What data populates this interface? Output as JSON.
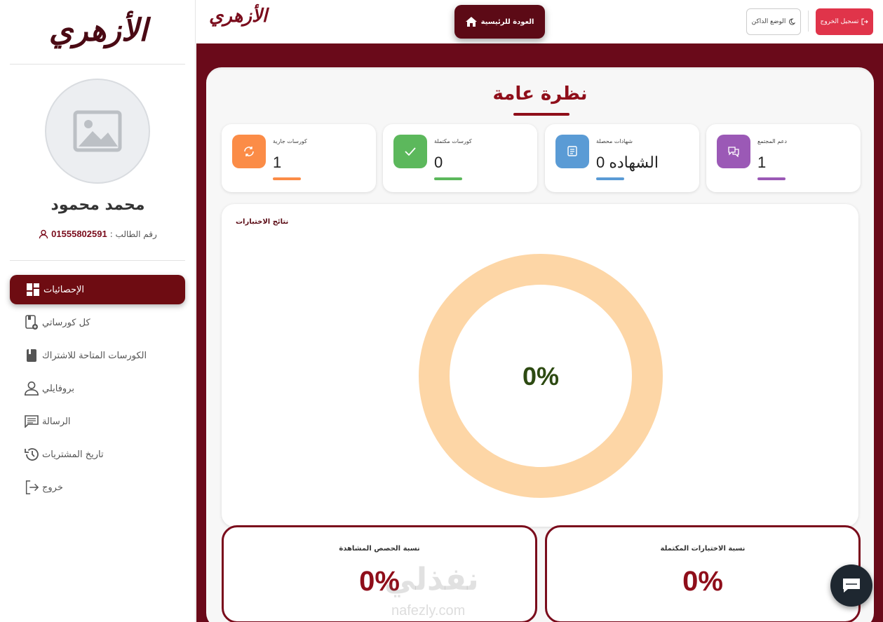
{
  "brand": {
    "logo_text": "الأزهري"
  },
  "sidebar": {
    "user_name": "محمد محمود",
    "student_id_label": "رقم الطالب :",
    "student_id": "01555802591",
    "items": [
      {
        "label": "الإحصائيات",
        "icon": "dashboard-icon",
        "active": true
      },
      {
        "label": "كل كورساتي",
        "icon": "course-add-icon",
        "active": false
      },
      {
        "label": "الكورسات المتاحة للاشتراك",
        "icon": "book-icon",
        "active": false
      },
      {
        "label": "بروفايلي",
        "icon": "person-icon",
        "active": false
      },
      {
        "label": "الرسالة",
        "icon": "message-icon",
        "active": false
      },
      {
        "label": "تاريخ المشتريات",
        "icon": "history-icon",
        "active": false
      },
      {
        "label": "خروج",
        "icon": "logout-icon",
        "active": false
      }
    ]
  },
  "topbar": {
    "home_label": "العودة للرئيسية",
    "dark_mode_label": "الوضع الداكن",
    "logout_label": "تسجيل الخروج"
  },
  "overview": {
    "title": "نظرة عامة",
    "stats": [
      {
        "label": "كورسات جارية",
        "value": "1",
        "color": "#fb8c47",
        "icon": "refresh-icon"
      },
      {
        "label": "كورسات مكتملة",
        "value": "0",
        "color": "#5cb85c",
        "icon": "check-icon"
      },
      {
        "label": "شهادات محصلة",
        "value": "0 الشهاده",
        "color": "#5a9bd5",
        "icon": "certificate-icon"
      },
      {
        "label": "دعم المجتمع",
        "value": "1",
        "color": "#9b59b6",
        "icon": "chat-bubbles-icon"
      }
    ]
  },
  "results": {
    "title": "نتائج الاختبارات",
    "center_value": "0%",
    "ring_color": "#fdd6a6",
    "text_color": "#2d4a12"
  },
  "bottom_cards": [
    {
      "title": "نسبة الحصص المشاهدة",
      "value": "0%"
    },
    {
      "title": "نسبة الاختبارات المكتملة",
      "value": "0%"
    }
  ],
  "watermark": {
    "arabic": "نفذلي",
    "latin": "nafezly.com"
  }
}
